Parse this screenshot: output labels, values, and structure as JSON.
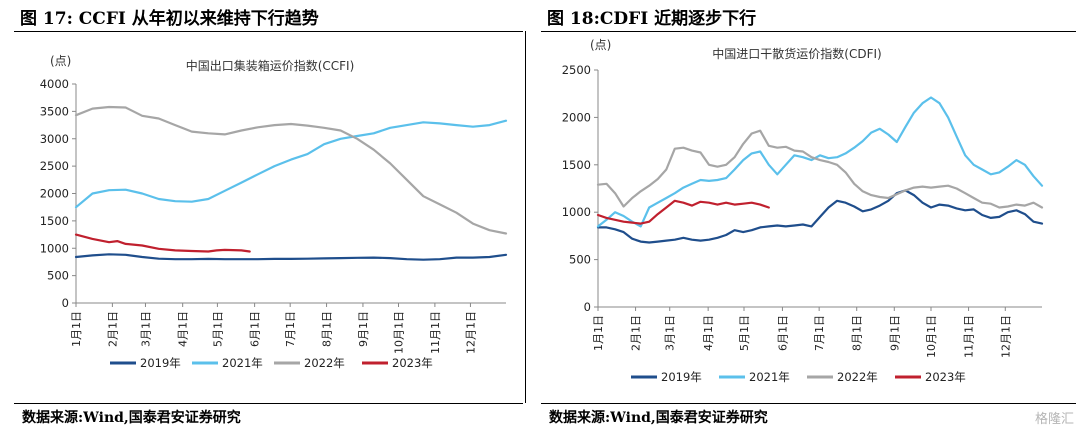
{
  "charts": [
    {
      "figure_title": "图 17:  CCFI 从年初以来维持下行趋势",
      "source": "数据来源:Wind,国泰君安证券研究",
      "chart_data": {
        "type": "line",
        "title": "中国出口集装箱运价指数(CCFI)",
        "ylabel": "(点)",
        "ylim": [
          0,
          4000
        ],
        "yticks": [
          "0",
          "500",
          "1000",
          "1500",
          "2000",
          "2500",
          "3000",
          "3500",
          "4000"
        ],
        "x_range": [
          1,
          53
        ],
        "x_ticks": [
          {
            "label": "1月1日",
            "x": 1
          },
          {
            "label": "2月1日",
            "x": 5.4
          },
          {
            "label": "3月1日",
            "x": 9.4
          },
          {
            "label": "4月1日",
            "x": 13.9
          },
          {
            "label": "5月1日",
            "x": 18.1
          },
          {
            "label": "6月1日",
            "x": 22.6
          },
          {
            "label": "7月1日",
            "x": 26.9
          },
          {
            "label": "8月1日",
            "x": 31.3
          },
          {
            "label": "9月1日",
            "x": 35.7
          },
          {
            "label": "10月1日",
            "x": 40
          },
          {
            "label": "11月1日",
            "x": 44.4
          },
          {
            "label": "12月1日",
            "x": 48.7
          }
        ],
        "grid": false,
        "legend_position": "bottom",
        "series": [
          {
            "name": "2019年",
            "color": "#1f4e8c",
            "x": [
              1,
              3,
              5,
              7,
              9,
              11,
              13,
              15,
              17,
              19,
              21,
              23,
              25,
              27,
              29,
              31,
              33,
              35,
              37,
              39,
              41,
              43,
              45,
              47,
              49,
              51,
              53
            ],
            "y": [
              840,
              870,
              890,
              880,
              840,
              810,
              800,
              800,
              805,
              800,
              800,
              800,
              805,
              805,
              810,
              815,
              820,
              825,
              830,
              820,
              800,
              790,
              800,
              830,
              830,
              840,
              880
            ]
          },
          {
            "name": "2021年",
            "color": "#5bc0eb",
            "x": [
              1,
              3,
              5,
              7,
              9,
              11,
              13,
              15,
              17,
              19,
              21,
              23,
              25,
              27,
              29,
              31,
              33,
              35,
              37,
              39,
              41,
              43,
              45,
              47,
              49,
              51,
              53
            ],
            "y": [
              1750,
              2000,
              2060,
              2070,
              2000,
              1900,
              1860,
              1850,
              1900,
              2050,
              2200,
              2350,
              2500,
              2620,
              2720,
              2900,
              3000,
              3050,
              3100,
              3200,
              3250,
              3300,
              3280,
              3250,
              3220,
              3250,
              3330
            ]
          },
          {
            "name": "2022年",
            "color": "#a6a6a6",
            "x": [
              1,
              3,
              5,
              7,
              9,
              11,
              13,
              15,
              17,
              19,
              21,
              23,
              25,
              27,
              29,
              31,
              33,
              35,
              37,
              39,
              41,
              43,
              45,
              47,
              49,
              51,
              53
            ],
            "y": [
              3430,
              3550,
              3580,
              3570,
              3420,
              3370,
              3250,
              3130,
              3100,
              3080,
              3150,
              3210,
              3250,
              3270,
              3240,
              3200,
              3150,
              3000,
              2800,
              2550,
              2250,
              1950,
              1800,
              1650,
              1450,
              1330,
              1270
            ]
          },
          {
            "name": "2023年",
            "color": "#c0202e",
            "x": [
              1,
              3,
              5,
              6,
              7,
              9,
              11,
              13,
              15,
              17,
              18,
              19,
              21,
              22
            ],
            "y": [
              1250,
              1170,
              1110,
              1130,
              1080,
              1050,
              990,
              960,
              950,
              940,
              960,
              970,
              960,
              940
            ]
          }
        ]
      }
    },
    {
      "figure_title": "图 18:CDFI 近期逐步下行",
      "source": "数据来源:Wind,国泰君安证券研究",
      "chart_data": {
        "type": "line",
        "title": "中国进口干散货运价指数(CDFI)",
        "ylabel": "(点)",
        "ylim": [
          0,
          2500
        ],
        "yticks": [
          "0",
          "500",
          "1000",
          "1500",
          "2000",
          "2500"
        ],
        "x_range": [
          1,
          53
        ],
        "x_ticks": [
          {
            "label": "1月1日",
            "x": 1
          },
          {
            "label": "2月1日",
            "x": 5.4
          },
          {
            "label": "3月1日",
            "x": 9.4
          },
          {
            "label": "4月1日",
            "x": 13.9
          },
          {
            "label": "5月1日",
            "x": 18.1
          },
          {
            "label": "6月1日",
            "x": 22.6
          },
          {
            "label": "7月1日",
            "x": 26.9
          },
          {
            "label": "8月1日",
            "x": 31.3
          },
          {
            "label": "9月1日",
            "x": 35.7
          },
          {
            "label": "10月1日",
            "x": 40
          },
          {
            "label": "11月1日",
            "x": 44.4
          },
          {
            "label": "12月1日",
            "x": 48.7
          }
        ],
        "grid": false,
        "legend_position": "bottom",
        "series": [
          {
            "name": "2019年",
            "color": "#1f4e8c",
            "x": [
              1,
              2,
              3,
              4,
              5,
              6,
              7,
              8,
              9,
              10,
              11,
              12,
              13,
              14,
              15,
              16,
              17,
              18,
              19,
              20,
              21,
              22,
              23,
              24,
              25,
              26,
              27,
              28,
              29,
              30,
              31,
              32,
              33,
              34,
              35,
              36,
              37,
              38,
              39,
              40,
              41,
              42,
              43,
              44,
              45,
              46,
              47,
              48,
              49,
              50,
              51,
              52,
              53
            ],
            "y": [
              840,
              840,
              820,
              790,
              720,
              690,
              680,
              690,
              700,
              710,
              730,
              710,
              700,
              710,
              730,
              760,
              810,
              790,
              810,
              840,
              850,
              860,
              850,
              860,
              870,
              850,
              950,
              1050,
              1120,
              1100,
              1060,
              1010,
              1030,
              1070,
              1120,
              1200,
              1230,
              1180,
              1100,
              1050,
              1080,
              1070,
              1040,
              1020,
              1030,
              970,
              940,
              950,
              1000,
              1020,
              980,
              900,
              880
            ]
          },
          {
            "name": "2021年",
            "color": "#5bc0eb",
            "x": [
              1,
              2,
              3,
              4,
              5,
              6,
              7,
              8,
              9,
              10,
              11,
              12,
              13,
              14,
              15,
              16,
              17,
              18,
              19,
              20,
              21,
              22,
              23,
              24,
              25,
              26,
              27,
              28,
              29,
              30,
              31,
              32,
              33,
              34,
              35,
              36,
              37,
              38,
              39,
              40,
              41,
              42,
              43,
              44,
              45,
              46,
              47,
              48,
              49,
              50,
              51,
              52,
              53
            ],
            "y": [
              850,
              920,
              1000,
              960,
              900,
              850,
              1050,
              1100,
              1150,
              1200,
              1260,
              1300,
              1340,
              1330,
              1340,
              1360,
              1450,
              1550,
              1620,
              1640,
              1500,
              1400,
              1500,
              1600,
              1580,
              1550,
              1600,
              1570,
              1580,
              1620,
              1680,
              1750,
              1840,
              1880,
              1820,
              1740,
              1900,
              2050,
              2150,
              2210,
              2150,
              2000,
              1800,
              1600,
              1500,
              1450,
              1400,
              1420,
              1480,
              1550,
              1500,
              1380,
              1280
            ]
          },
          {
            "name": "2022年",
            "color": "#a6a6a6",
            "x": [
              1,
              2,
              3,
              4,
              5,
              6,
              7,
              8,
              9,
              10,
              11,
              12,
              13,
              14,
              15,
              16,
              17,
              18,
              19,
              20,
              21,
              22,
              23,
              24,
              25,
              26,
              27,
              28,
              29,
              30,
              31,
              32,
              33,
              34,
              35,
              36,
              37,
              38,
              39,
              40,
              41,
              42,
              43,
              44,
              45,
              46,
              47,
              48,
              49,
              50,
              51,
              52,
              53
            ],
            "y": [
              1290,
              1300,
              1200,
              1060,
              1150,
              1220,
              1280,
              1350,
              1450,
              1670,
              1680,
              1650,
              1630,
              1500,
              1480,
              1500,
              1580,
              1720,
              1830,
              1860,
              1700,
              1680,
              1690,
              1650,
              1640,
              1580,
              1550,
              1530,
              1500,
              1420,
              1300,
              1220,
              1180,
              1160,
              1150,
              1190,
              1230,
              1260,
              1270,
              1260,
              1270,
              1280,
              1250,
              1200,
              1150,
              1100,
              1090,
              1050,
              1060,
              1080,
              1070,
              1100,
              1050
            ]
          },
          {
            "name": "2023年",
            "color": "#c0202e",
            "x": [
              1,
              2,
              3,
              4,
              5,
              6,
              7,
              8,
              9,
              10,
              11,
              12,
              13,
              14,
              15,
              16,
              17,
              18,
              19,
              20,
              21
            ],
            "y": [
              970,
              940,
              920,
              900,
              890,
              880,
              900,
              980,
              1050,
              1120,
              1100,
              1070,
              1110,
              1100,
              1080,
              1100,
              1080,
              1090,
              1100,
              1080,
              1050
            ]
          }
        ]
      }
    }
  ],
  "watermark": "格隆汇"
}
